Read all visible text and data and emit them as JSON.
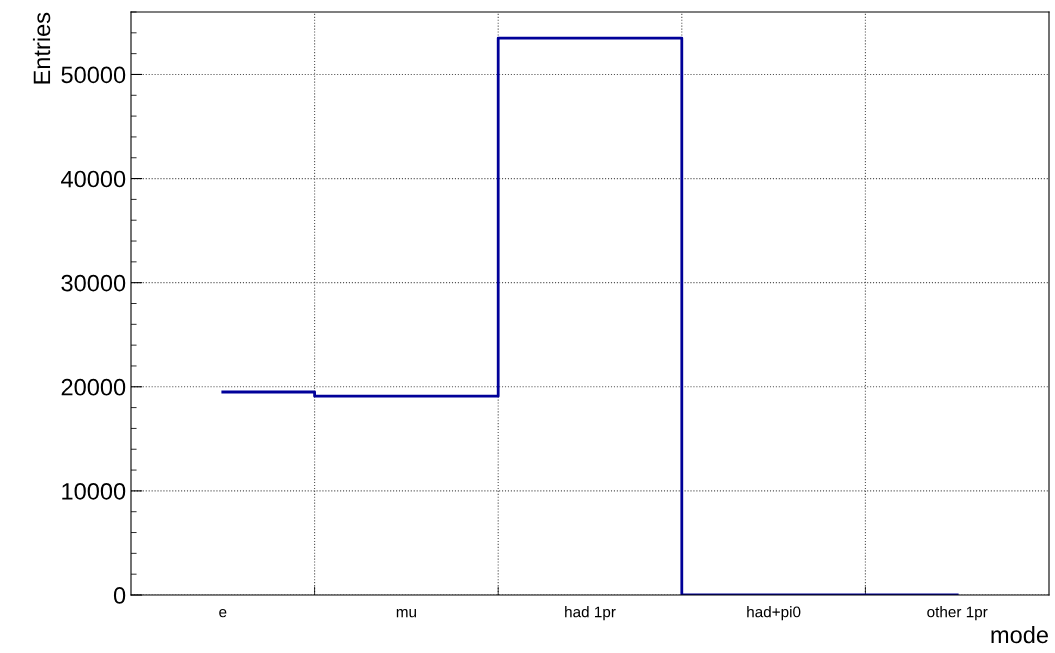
{
  "chart_data": {
    "type": "step",
    "xlabel": "mode",
    "ylabel": "Entries",
    "categories": [
      "e",
      "mu",
      "had 1pr",
      "had+pi0",
      "other 1pr"
    ],
    "values": [
      19500,
      19100,
      53500,
      0,
      0
    ],
    "color": "#000099",
    "ylim": [
      0,
      56000
    ],
    "yticks": [
      0,
      10000,
      20000,
      30000,
      40000,
      50000
    ],
    "grid": true,
    "legend": false
  }
}
